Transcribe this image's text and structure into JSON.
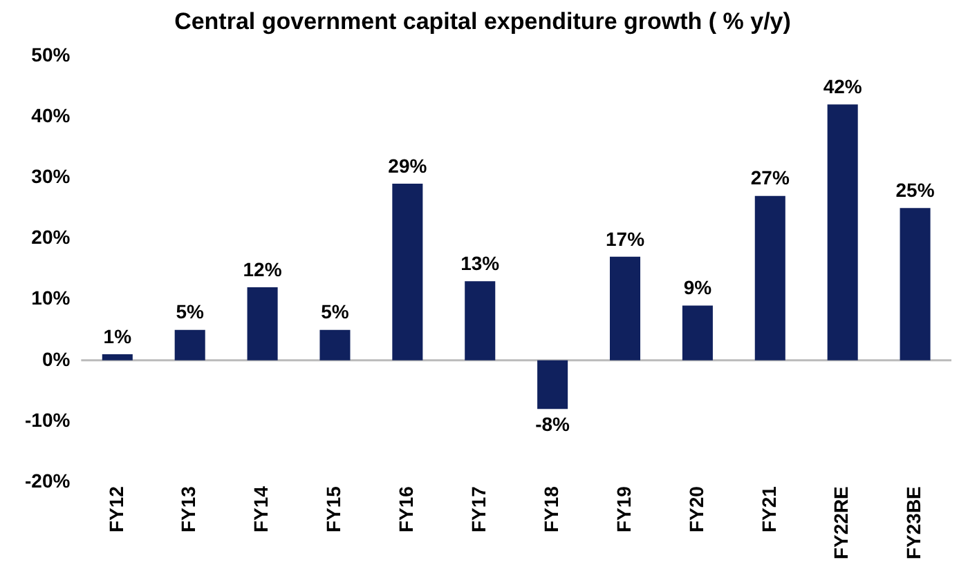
{
  "chart_data": {
    "type": "bar",
    "title": "Central government capital expenditure growth ( % y/y)",
    "categories": [
      "FY12",
      "FY13",
      "FY14",
      "FY15",
      "FY16",
      "FY17",
      "FY18",
      "FY19",
      "FY20",
      "FY21",
      "FY22RE",
      "FY23BE"
    ],
    "values": [
      1,
      5,
      12,
      5,
      29,
      13,
      -8,
      17,
      9,
      27,
      42,
      25
    ],
    "color": "#10215e",
    "ylim": [
      -20,
      50
    ],
    "yticks": [
      {
        "value": -20,
        "label": "-20%"
      },
      {
        "value": -10,
        "label": "-10%"
      },
      {
        "value": 0,
        "label": "0%"
      },
      {
        "value": 10,
        "label": "10%"
      },
      {
        "value": 20,
        "label": "20%"
      },
      {
        "value": 30,
        "label": "30%"
      },
      {
        "value": 40,
        "label": "40%"
      },
      {
        "value": 50,
        "label": "50%"
      }
    ],
    "value_labels": [
      "1%",
      "5%",
      "12%",
      "5%",
      "29%",
      "13%",
      "-8%",
      "17%",
      "9%",
      "27%",
      "42%",
      "25%"
    ],
    "ref_lines": [
      {
        "axis": "y",
        "value": 0,
        "color": "#bbbbbb"
      }
    ],
    "grid": false,
    "legend": false
  }
}
